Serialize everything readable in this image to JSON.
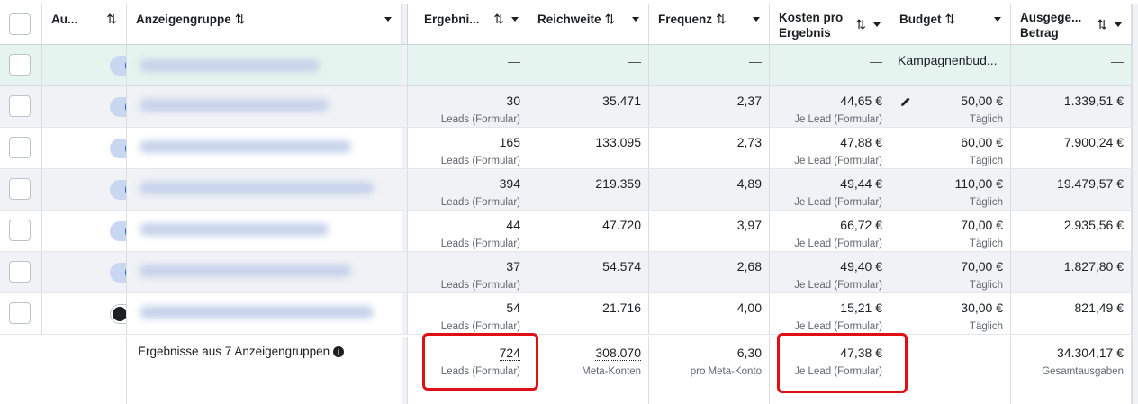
{
  "columns": {
    "delivery": "Au...",
    "adset": "Anzeigengruppe",
    "results": "Ergebni...",
    "reach": "Reichweite",
    "frequency": "Frequenz",
    "cost_line1": "Kosten pro",
    "cost_line2": "Ergebnis",
    "budget": "Budget",
    "spent_line1": "Ausgege...",
    "spent_line2": "Betrag",
    "sort_glyph": "⇅"
  },
  "campaign_row": {
    "results": "—",
    "reach": "—",
    "frequency": "—",
    "cost": "—",
    "budget": "Kampagnenbud...",
    "spent": "—"
  },
  "rows": [
    {
      "toggle_on": true,
      "results": "30",
      "results_sub": "Leads (Formular)",
      "reach": "35.471",
      "frequency": "2,37",
      "cost": "44,65 €",
      "cost_sub": "Je Lead (Formular)",
      "budget": "50,00 €",
      "budget_sub": "Täglich",
      "spent": "1.339,51 €"
    },
    {
      "toggle_on": true,
      "results": "165",
      "results_sub": "Leads (Formular)",
      "reach": "133.095",
      "frequency": "2,73",
      "cost": "47,88 €",
      "cost_sub": "Je Lead (Formular)",
      "budget": "60,00 €",
      "budget_sub": "Täglich",
      "spent": "7.900,24 €"
    },
    {
      "toggle_on": true,
      "results": "394",
      "results_sub": "Leads (Formular)",
      "reach": "219.359",
      "frequency": "4,89",
      "cost": "49,44 €",
      "cost_sub": "Je Lead (Formular)",
      "budget": "110,00 €",
      "budget_sub": "Täglich",
      "spent": "19.479,57 €"
    },
    {
      "toggle_on": true,
      "results": "44",
      "results_sub": "Leads (Formular)",
      "reach": "47.720",
      "frequency": "3,97",
      "cost": "66,72 €",
      "cost_sub": "Je Lead (Formular)",
      "budget": "70,00 €",
      "budget_sub": "Täglich",
      "spent": "2.935,56 €"
    },
    {
      "toggle_on": true,
      "results": "37",
      "results_sub": "Leads (Formular)",
      "reach": "54.574",
      "frequency": "2,68",
      "cost": "49,40 €",
      "cost_sub": "Je Lead (Formular)",
      "budget": "70,00 €",
      "budget_sub": "Täglich",
      "spent": "1.827,80 €"
    },
    {
      "toggle_on": false,
      "results": "54",
      "results_sub": "Leads (Formular)",
      "reach": "21.716",
      "frequency": "4,00",
      "cost": "15,21 €",
      "cost_sub": "Je Lead (Formular)",
      "budget": "30,00 €",
      "budget_sub": "Täglich",
      "spent": "821,49 €"
    }
  ],
  "totals": {
    "label": "Ergebnisse aus 7 Anzeigengruppen",
    "results": "724",
    "results_sub": "Leads (Formular)",
    "reach": "308.070",
    "reach_sub": "Meta-Konten",
    "frequency": "6,30",
    "frequency_sub": "pro Meta-Konto",
    "cost": "47,38 €",
    "cost_sub": "Je Lead (Formular)",
    "spent": "34.304,17 €",
    "spent_sub": "Gesamtausgaben"
  },
  "colors": {
    "campaign_row_bg": "#e6f4ef",
    "stripe_bg": "#f0f2f5",
    "highlight_box": "#e00f14",
    "toggle_on": "#1b63c7"
  }
}
